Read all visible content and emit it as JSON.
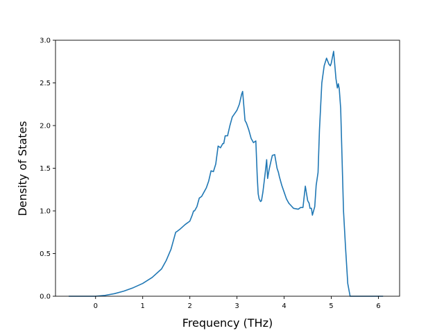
{
  "chart_data": {
    "type": "line",
    "title": "",
    "xlabel": "Frequency (THz)",
    "ylabel": "Density of States",
    "xlim": [
      -0.85,
      6.45
    ],
    "ylim": [
      0.0,
      3.0
    ],
    "xticks": [
      0,
      1,
      2,
      3,
      4,
      5,
      6
    ],
    "xtick_labels": [
      "0",
      "1",
      "2",
      "3",
      "4",
      "5",
      "6"
    ],
    "yticks": [
      0.0,
      0.5,
      1.0,
      1.5,
      2.0,
      2.5,
      3.0
    ],
    "ytick_labels": [
      "0.0",
      "0.5",
      "1.0",
      "1.5",
      "2.0",
      "2.5",
      "3.0"
    ],
    "grid": false,
    "color": "#1f77b4",
    "series": [
      {
        "x": [
          -0.57,
          0.0,
          0.2,
          0.4,
          0.6,
          0.8,
          1.0,
          1.2,
          1.4,
          1.5,
          1.6,
          1.65,
          1.7,
          1.73,
          1.8,
          1.9,
          2.0,
          2.05,
          2.08,
          2.1,
          2.15,
          2.2,
          2.25,
          2.3,
          2.35,
          2.4,
          2.45,
          2.5,
          2.55,
          2.6,
          2.65,
          2.7,
          2.72,
          2.75,
          2.8,
          2.85,
          2.9,
          2.95,
          3.0,
          3.05,
          3.1,
          3.12,
          3.15,
          3.17,
          3.2,
          3.25,
          3.3,
          3.35,
          3.4,
          3.43,
          3.45,
          3.47,
          3.5,
          3.52,
          3.55,
          3.6,
          3.63,
          3.65,
          3.68,
          3.72,
          3.75,
          3.8,
          3.85,
          3.88,
          3.9,
          3.95,
          4.0,
          4.05,
          4.1,
          4.15,
          4.2,
          4.3,
          4.35,
          4.4,
          4.45,
          4.5,
          4.53,
          4.55,
          4.58,
          4.6,
          4.65,
          4.68,
          4.72,
          4.75,
          4.8,
          4.85,
          4.9,
          4.95,
          4.98,
          5.0,
          5.05,
          5.1,
          5.13,
          5.15,
          5.17,
          5.2,
          5.23,
          5.26,
          5.3,
          5.35,
          5.4,
          5.45,
          5.48,
          5.5,
          5.52,
          5.55,
          5.6,
          5.8,
          6.0,
          6.1
        ],
        "y": [
          0.0,
          0.0,
          0.01,
          0.03,
          0.06,
          0.1,
          0.15,
          0.22,
          0.32,
          0.42,
          0.55,
          0.65,
          0.75,
          0.76,
          0.79,
          0.84,
          0.88,
          0.95,
          1.0,
          1.0,
          1.05,
          1.15,
          1.17,
          1.22,
          1.27,
          1.35,
          1.47,
          1.46,
          1.55,
          1.76,
          1.74,
          1.79,
          1.79,
          1.88,
          1.88,
          2.0,
          2.1,
          2.14,
          2.18,
          2.25,
          2.37,
          2.4,
          2.2,
          2.06,
          2.03,
          1.95,
          1.85,
          1.8,
          1.82,
          1.4,
          1.2,
          1.14,
          1.11,
          1.12,
          1.22,
          1.45,
          1.6,
          1.38,
          1.48,
          1.58,
          1.65,
          1.66,
          1.5,
          1.45,
          1.4,
          1.3,
          1.22,
          1.14,
          1.09,
          1.06,
          1.03,
          1.02,
          1.04,
          1.04,
          1.29,
          1.12,
          1.09,
          1.03,
          1.03,
          0.95,
          1.05,
          1.3,
          1.45,
          1.95,
          2.5,
          2.7,
          2.79,
          2.72,
          2.7,
          2.73,
          2.87,
          2.55,
          2.44,
          2.49,
          2.43,
          2.2,
          1.6,
          1.0,
          0.6,
          0.15,
          0.0,
          0.0,
          0.0,
          0.0,
          0.0,
          0.0,
          0.0,
          0.0,
          0.0,
          0.0
        ]
      }
    ]
  }
}
